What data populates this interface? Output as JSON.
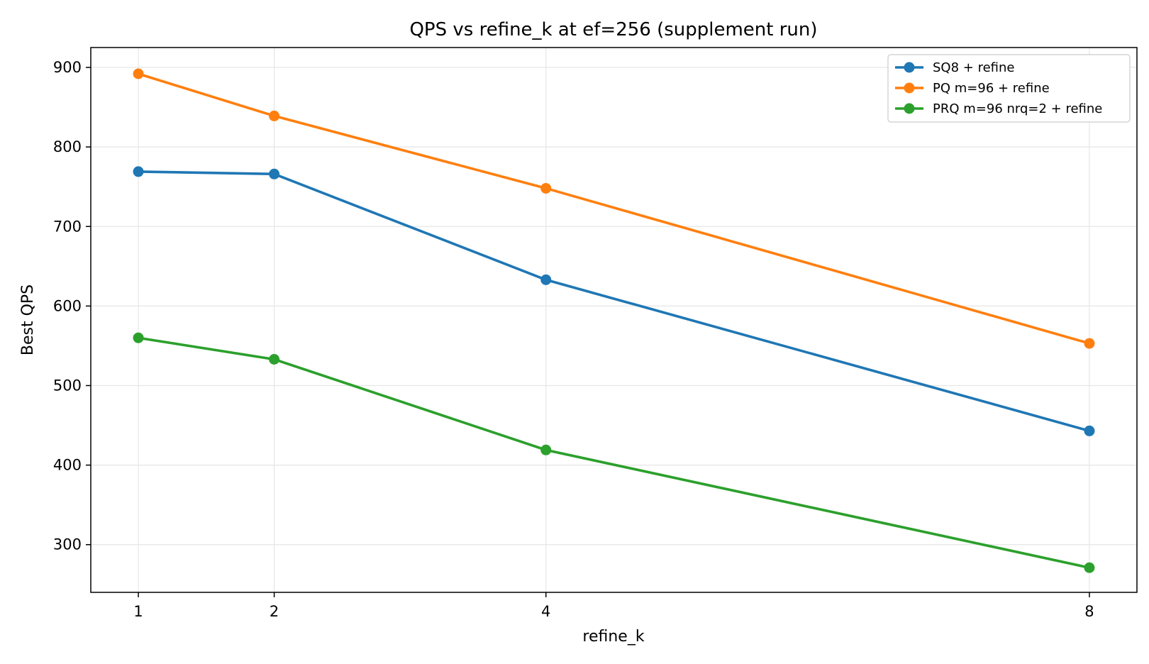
{
  "chart_data": {
    "type": "line",
    "title": "QPS vs refine_k at ef=256 (supplement run)",
    "xlabel": "refine_k",
    "ylabel": "Best QPS",
    "x": [
      1,
      2,
      4,
      8
    ],
    "x_tick_labels": [
      "1",
      "2",
      "4",
      "8"
    ],
    "xlim": [
      0.65,
      8.35
    ],
    "ylim": [
      240,
      925
    ],
    "y_ticks": [
      300,
      400,
      500,
      600,
      700,
      800,
      900
    ],
    "y_tick_labels": [
      "300",
      "400",
      "500",
      "600",
      "700",
      "800",
      "900"
    ],
    "grid": true,
    "legend_position": "top-right",
    "series": [
      {
        "name": "SQ8 + refine",
        "color": "#1f77b4",
        "values": [
          769,
          766,
          633,
          443
        ]
      },
      {
        "name": "PQ m=96 + refine",
        "color": "#ff7f0e",
        "values": [
          892,
          839,
          748,
          553
        ]
      },
      {
        "name": "PRQ m=96 nrq=2 + refine",
        "color": "#2ca02c",
        "values": [
          560,
          533,
          419,
          271
        ]
      }
    ]
  }
}
